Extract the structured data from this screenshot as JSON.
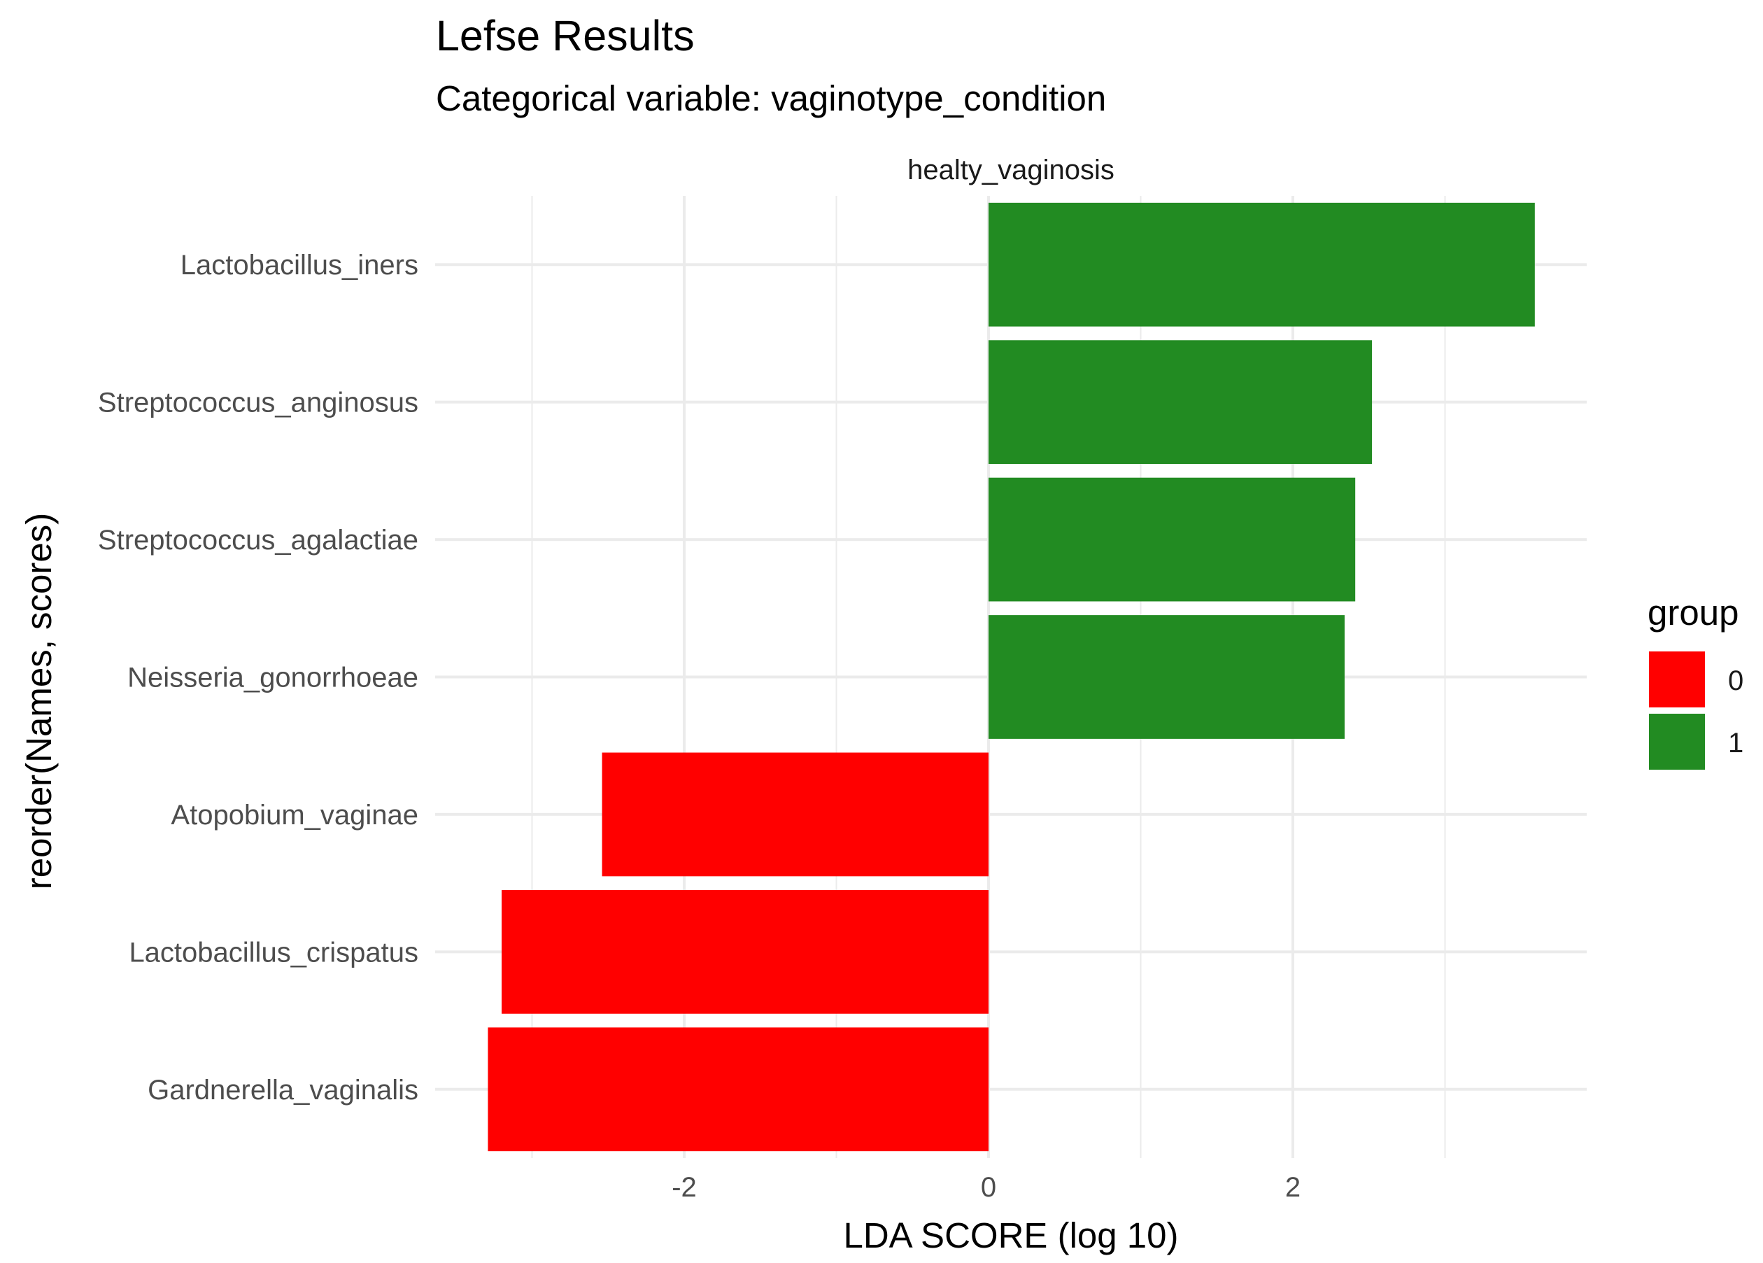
{
  "chart_data": {
    "type": "bar",
    "orientation": "horizontal",
    "title": "Lefse Results",
    "subtitle": "Categorical variable: vaginotype_condition",
    "facet_label": "healty_vaginosis",
    "xlabel": "LDA SCORE (log 10)",
    "ylabel": "reorder(Names, scores)",
    "xlim": [
      -3.3,
      3.95
    ],
    "x_ticks": [
      -2,
      0,
      2
    ],
    "x_tick_labels": [
      "-2",
      "0",
      "2"
    ],
    "grid": true,
    "legend": {
      "title": "group",
      "position": "right",
      "entries": [
        {
          "label": "0",
          "color": "#ff0000"
        },
        {
          "label": "1",
          "color": "#228b22"
        }
      ]
    },
    "categories": [
      "Lactobacillus_iners",
      "Streptococcus_anginosus",
      "Streptococcus_agalactiae",
      "Neisseria_gonorrhoeae",
      "Atopobium_vaginae",
      "Lactobacillus_crispatus",
      "Gardnerella_vaginalis"
    ],
    "values": [
      3.59,
      2.52,
      2.41,
      2.34,
      -2.54,
      -3.2,
      -3.29
    ],
    "groups": [
      "1",
      "1",
      "1",
      "1",
      "0",
      "0",
      "0"
    ]
  }
}
